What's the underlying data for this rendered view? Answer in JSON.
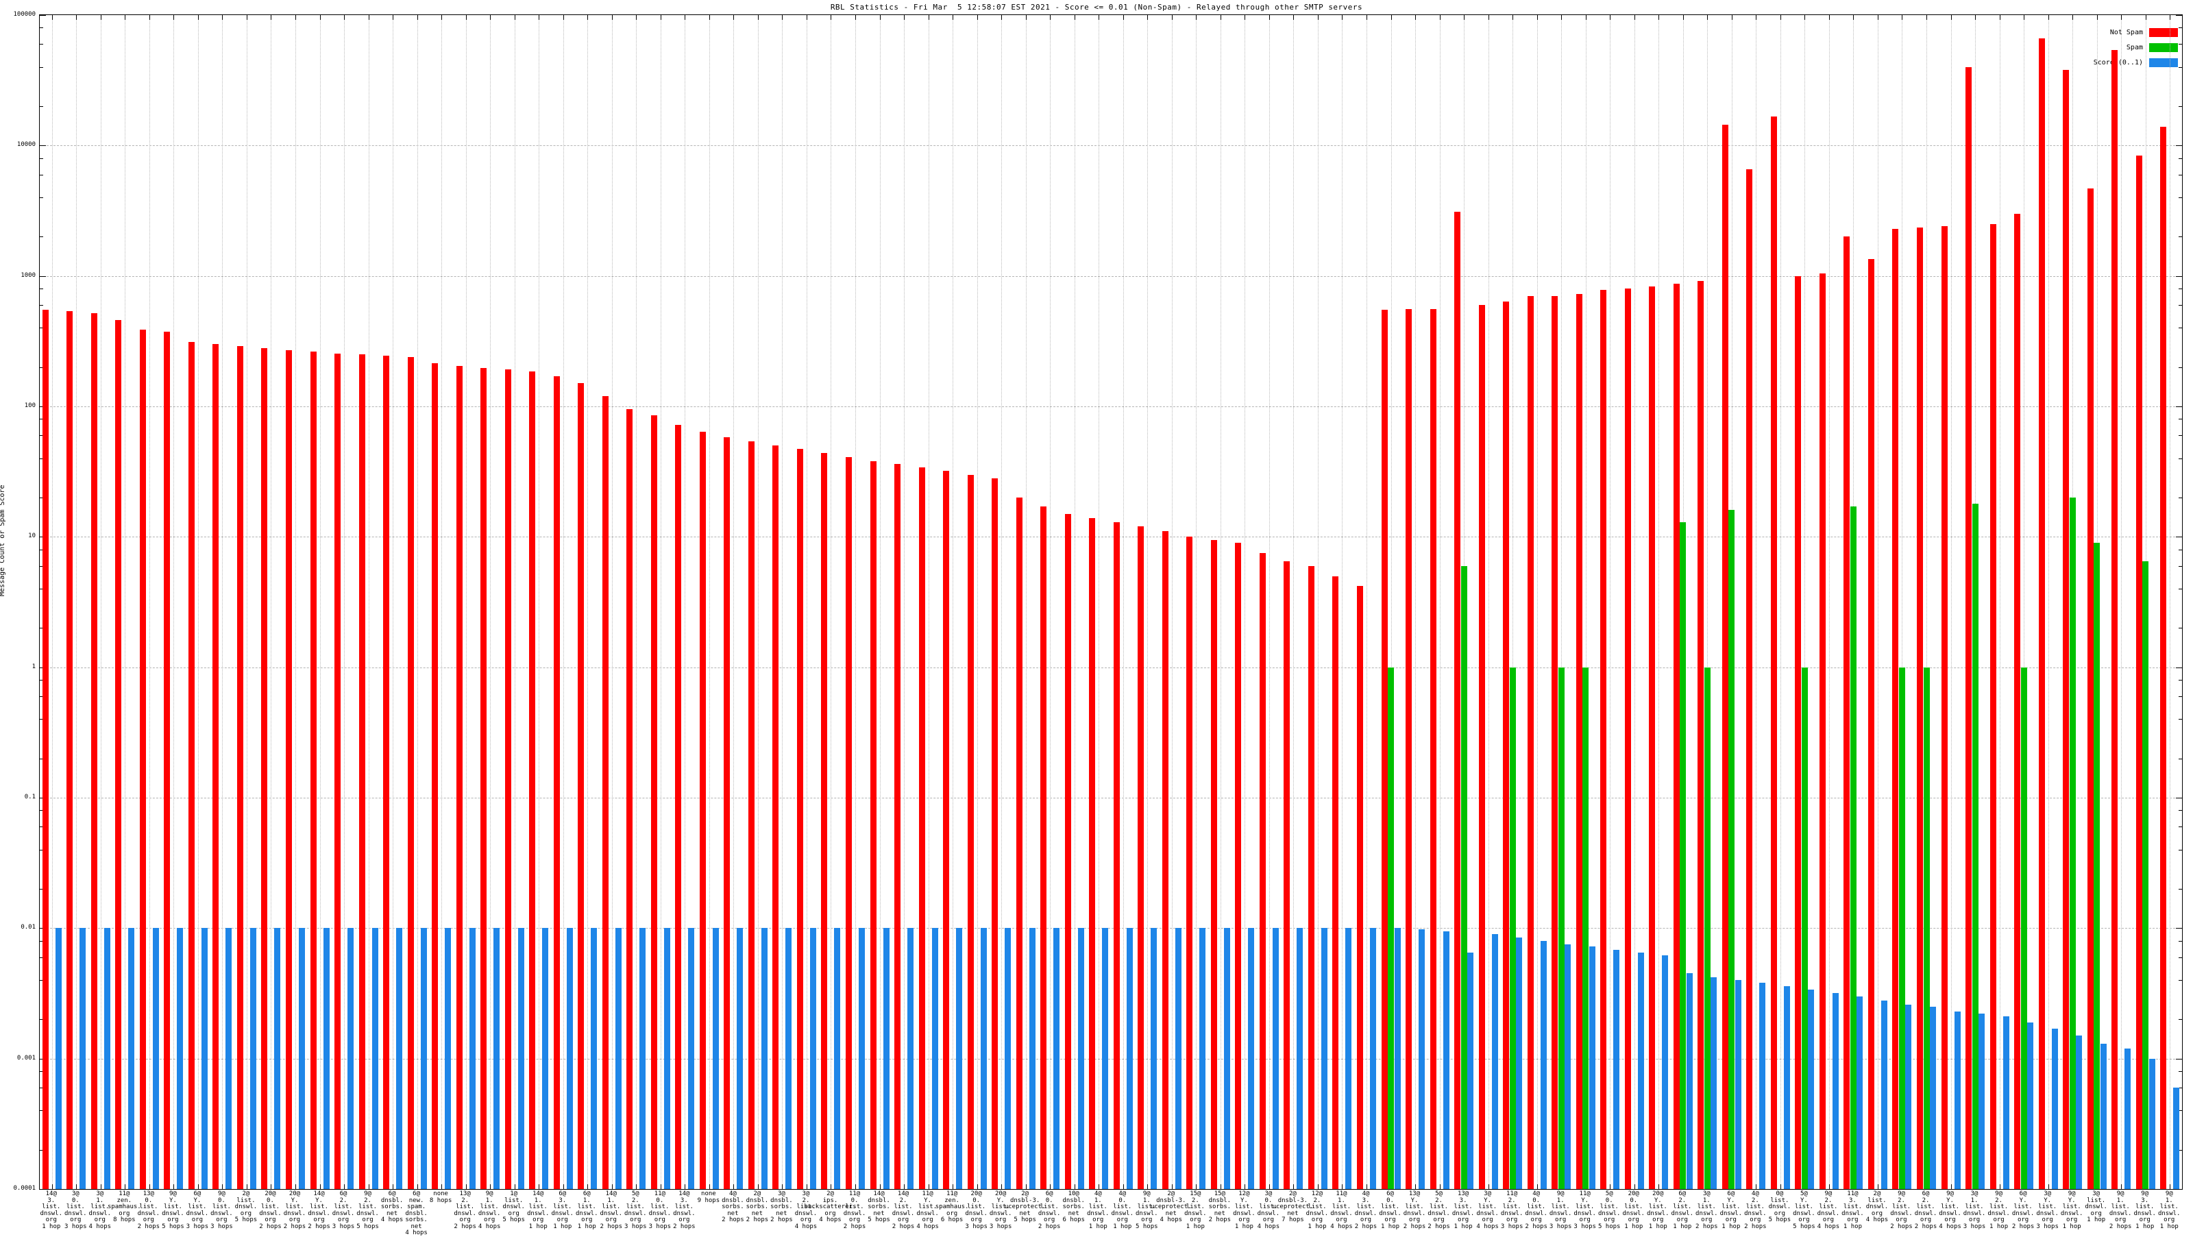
{
  "title": "RBL Statistics - Fri Mar  5 12:58:07 EST 2021 - Score <= 0.01 (Non-Spam) - Relayed through other SMTP servers",
  "y_axis": {
    "label": "Message Count or Spam Score",
    "ticks": [
      "100000",
      "10000",
      "1000",
      "100",
      "10",
      "1",
      "0.1",
      "0.01",
      "0.001",
      "0.0001"
    ]
  },
  "legend": [
    {
      "label": "Not Spam",
      "color": "#ff0000"
    },
    {
      "label": "Spam",
      "color": "#00c000"
    },
    {
      "label": "Score (0..1)",
      "color": "#1e86e8"
    }
  ],
  "chart_data": {
    "type": "bar",
    "y_scale": "log",
    "ylim": [
      0.0001,
      100000
    ],
    "grid": {
      "horizontal": "dashed-per-decade",
      "vertical": "dotted-per-group"
    },
    "legend_position": "top-right",
    "series_names": [
      "Not Spam",
      "Spam",
      "Score (0..1)"
    ],
    "groups": [
      {
        "label": [
          "14@",
          "3.",
          "list.",
          "dnswl.",
          "org",
          "1 hop"
        ],
        "not_spam": 550,
        "spam": 0,
        "score": 0.01
      },
      {
        "label": [
          "3@",
          "0.",
          "list.",
          "dnswl.",
          "org",
          "3 hops"
        ],
        "not_spam": 535,
        "spam": 0,
        "score": 0.01
      },
      {
        "label": [
          "3@",
          "1.",
          "list.",
          "dnswl.",
          "org",
          "4 hops"
        ],
        "not_spam": 520,
        "spam": 0,
        "score": 0.01
      },
      {
        "label": [
          "11@",
          "zen.",
          "spamhaus.",
          "org",
          "8 hops"
        ],
        "not_spam": 460,
        "spam": 0,
        "score": 0.01
      },
      {
        "label": [
          "13@",
          "0.",
          "list.",
          "dnswl.",
          "org",
          "2 hops"
        ],
        "not_spam": 390,
        "spam": 0,
        "score": 0.01
      },
      {
        "label": [
          "9@",
          "Y.",
          "list.",
          "dnswl.",
          "org",
          "5 hops"
        ],
        "not_spam": 375,
        "spam": 0,
        "score": 0.01
      },
      {
        "label": [
          "6@",
          "Y.",
          "list.",
          "dnswl.",
          "org",
          "3 hops"
        ],
        "not_spam": 310,
        "spam": 0,
        "score": 0.01
      },
      {
        "label": [
          "9@",
          "0.",
          "list.",
          "dnswl.",
          "org",
          "3 hops"
        ],
        "not_spam": 300,
        "spam": 0,
        "score": 0.01
      },
      {
        "label": [
          "2@",
          "list.",
          "dnswl.",
          "org",
          "5 hops"
        ],
        "not_spam": 290,
        "spam": 0,
        "score": 0.01
      },
      {
        "label": [
          "20@",
          "0.",
          "list.",
          "dnswl.",
          "org",
          "2 hops"
        ],
        "not_spam": 280,
        "spam": 0,
        "score": 0.01
      },
      {
        "label": [
          "20@",
          "Y.",
          "list.",
          "dnswl.",
          "org",
          "2 hops"
        ],
        "not_spam": 270,
        "spam": 0,
        "score": 0.01
      },
      {
        "label": [
          "14@",
          "Y.",
          "list.",
          "dnswl.",
          "org",
          "2 hops"
        ],
        "not_spam": 262,
        "spam": 0,
        "score": 0.01
      },
      {
        "label": [
          "6@",
          "2.",
          "list.",
          "dnswl.",
          "org",
          "3 hops"
        ],
        "not_spam": 255,
        "spam": 0,
        "score": 0.01
      },
      {
        "label": [
          "9@",
          "2.",
          "list.",
          "dnswl.",
          "org",
          "5 hops"
        ],
        "not_spam": 250,
        "spam": 0,
        "score": 0.01
      },
      {
        "label": [
          "6@",
          "dnsbl.",
          "sorbs.",
          "net",
          "4 hops"
        ],
        "not_spam": 245,
        "spam": 0,
        "score": 0.01
      },
      {
        "label": [
          "6@",
          "new.",
          "spam.",
          "dnsbl.",
          "sorbs.",
          "net",
          "4 hops"
        ],
        "not_spam": 240,
        "spam": 0,
        "score": 0.01
      },
      {
        "label": [
          "none",
          "8 hops"
        ],
        "not_spam": 215,
        "spam": 0,
        "score": 0.01
      },
      {
        "label": [
          "13@",
          "2.",
          "list.",
          "dnswl.",
          "org",
          "2 hops"
        ],
        "not_spam": 205,
        "spam": 0,
        "score": 0.01
      },
      {
        "label": [
          "9@",
          "1.",
          "list.",
          "dnswl.",
          "org",
          "4 hops"
        ],
        "not_spam": 198,
        "spam": 0,
        "score": 0.01
      },
      {
        "label": [
          "1@",
          "list.",
          "dnswl.",
          "org",
          "5 hops"
        ],
        "not_spam": 192,
        "spam": 0,
        "score": 0.01
      },
      {
        "label": [
          "14@",
          "1.",
          "list.",
          "dnswl.",
          "org",
          "1 hop"
        ],
        "not_spam": 186,
        "spam": 0,
        "score": 0.01
      },
      {
        "label": [
          "6@",
          "3.",
          "list.",
          "dnswl.",
          "org",
          "1 hop"
        ],
        "not_spam": 170,
        "spam": 0,
        "score": 0.01
      },
      {
        "label": [
          "6@",
          "1.",
          "list.",
          "dnswl.",
          "org",
          "1 hop"
        ],
        "not_spam": 150,
        "spam": 0,
        "score": 0.01
      },
      {
        "label": [
          "14@",
          "1.",
          "list.",
          "dnswl.",
          "org",
          "2 hops"
        ],
        "not_spam": 120,
        "spam": 0,
        "score": 0.01
      },
      {
        "label": [
          "5@",
          "2.",
          "list.",
          "dnswl.",
          "org",
          "3 hops"
        ],
        "not_spam": 95,
        "spam": 0,
        "score": 0.01
      },
      {
        "label": [
          "11@",
          "0.",
          "list.",
          "dnswl.",
          "org",
          "3 hops"
        ],
        "not_spam": 85,
        "spam": 0,
        "score": 0.01
      },
      {
        "label": [
          "14@",
          "3.",
          "list.",
          "dnswl.",
          "org",
          "2 hops"
        ],
        "not_spam": 72,
        "spam": 0,
        "score": 0.01
      },
      {
        "label": [
          "none",
          "9 hops"
        ],
        "not_spam": 64,
        "spam": 0,
        "score": 0.01
      },
      {
        "label": [
          "4@",
          "dnsbl.",
          "sorbs.",
          "net",
          "2 hops"
        ],
        "not_spam": 58,
        "spam": 0,
        "score": 0.01
      },
      {
        "label": [
          "2@",
          "dnsbl.",
          "sorbs.",
          "net",
          "2 hops"
        ],
        "not_spam": 54,
        "spam": 0,
        "score": 0.01
      },
      {
        "label": [
          "3@",
          "dnsbl.",
          "sorbs.",
          "net",
          "2 hops"
        ],
        "not_spam": 50,
        "spam": 0,
        "score": 0.01
      },
      {
        "label": [
          "3@",
          "2.",
          "list.",
          "dnswl.",
          "org",
          "4 hops"
        ],
        "not_spam": 47,
        "spam": 0,
        "score": 0.01
      },
      {
        "label": [
          "2@",
          "ips.",
          "backscatterer.",
          "org",
          "4 hops"
        ],
        "not_spam": 44,
        "spam": 0,
        "score": 0.01
      },
      {
        "label": [
          "11@",
          "0.",
          "list.",
          "dnswl.",
          "org",
          "2 hops"
        ],
        "not_spam": 41,
        "spam": 0,
        "score": 0.01
      },
      {
        "label": [
          "14@",
          "dnsbl.",
          "sorbs.",
          "net",
          "5 hops"
        ],
        "not_spam": 38,
        "spam": 0,
        "score": 0.01
      },
      {
        "label": [
          "14@",
          "2.",
          "list.",
          "dnswl.",
          "org",
          "2 hops"
        ],
        "not_spam": 36,
        "spam": 0,
        "score": 0.01
      },
      {
        "label": [
          "11@",
          "Y.",
          "list.",
          "dnswl.",
          "org",
          "4 hops"
        ],
        "not_spam": 34,
        "spam": 0,
        "score": 0.01
      },
      {
        "label": [
          "11@",
          "zen.",
          "spamhaus.",
          "org",
          "6 hops"
        ],
        "not_spam": 32,
        "spam": 0,
        "score": 0.01
      },
      {
        "label": [
          "20@",
          "0.",
          "list.",
          "dnswl.",
          "org",
          "3 hops"
        ],
        "not_spam": 30,
        "spam": 0,
        "score": 0.01
      },
      {
        "label": [
          "20@",
          "Y.",
          "list.",
          "dnswl.",
          "org",
          "3 hops"
        ],
        "not_spam": 28,
        "spam": 0,
        "score": 0.01
      },
      {
        "label": [
          "2@",
          "dnsbl-3.",
          "uceprotect.",
          "net",
          "5 hops"
        ],
        "not_spam": 20,
        "spam": 0,
        "score": 0.01
      },
      {
        "label": [
          "6@",
          "0.",
          "list.",
          "dnswl.",
          "org",
          "2 hops"
        ],
        "not_spam": 17,
        "spam": 0,
        "score": 0.01
      },
      {
        "label": [
          "10@",
          "dnsbl.",
          "sorbs.",
          "net",
          "6 hops"
        ],
        "not_spam": 15,
        "spam": 0,
        "score": 0.01
      },
      {
        "label": [
          "4@",
          "1.",
          "list.",
          "dnswl.",
          "org",
          "1 hop"
        ],
        "not_spam": 14,
        "spam": 0,
        "score": 0.01
      },
      {
        "label": [
          "4@",
          "0.",
          "list.",
          "dnswl.",
          "org",
          "1 hop"
        ],
        "not_spam": 13,
        "spam": 0,
        "score": 0.01
      },
      {
        "label": [
          "9@",
          "1.",
          "list.",
          "dnswl.",
          "org",
          "5 hops"
        ],
        "not_spam": 12,
        "spam": 0,
        "score": 0.01
      },
      {
        "label": [
          "2@",
          "dnsbl-3.",
          "uceprotect.",
          "net",
          "4 hops"
        ],
        "not_spam": 11,
        "spam": 0,
        "score": 0.01
      },
      {
        "label": [
          "15@",
          "2.",
          "list.",
          "dnswl.",
          "org",
          "1 hop"
        ],
        "not_spam": 10,
        "spam": 0,
        "score": 0.01
      },
      {
        "label": [
          "15@",
          "dnsbl.",
          "sorbs.",
          "net",
          "2 hops"
        ],
        "not_spam": 9.5,
        "spam": 0,
        "score": 0.01
      },
      {
        "label": [
          "12@",
          "Y.",
          "list.",
          "dnswl.",
          "org",
          "1 hop"
        ],
        "not_spam": 9,
        "spam": 0,
        "score": 0.01
      },
      {
        "label": [
          "3@",
          "0.",
          "list.",
          "dnswl.",
          "org",
          "4 hops"
        ],
        "not_spam": 7.5,
        "spam": 0,
        "score": 0.01
      },
      {
        "label": [
          "2@",
          "dnsbl-3.",
          "uceprotect.",
          "net",
          "7 hops"
        ],
        "not_spam": 6.5,
        "spam": 0,
        "score": 0.01
      },
      {
        "label": [
          "12@",
          "2.",
          "list.",
          "dnswl.",
          "org",
          "1 hop"
        ],
        "not_spam": 6,
        "spam": 0,
        "score": 0.01
      },
      {
        "label": [
          "11@",
          "1.",
          "list.",
          "dnswl.",
          "org",
          "4 hops"
        ],
        "not_spam": 5,
        "spam": 0,
        "score": 0.01
      },
      {
        "label": [
          "4@",
          "3.",
          "list.",
          "dnswl.",
          "org",
          "2 hops"
        ],
        "not_spam": 4.2,
        "spam": 0,
        "score": 0.01
      },
      {
        "label": [
          "6@",
          "0.",
          "list.",
          "dnswl.",
          "org",
          "1 hop"
        ],
        "not_spam": 550,
        "spam": 1,
        "score": 0.01
      },
      {
        "label": [
          "13@",
          "Y.",
          "list.",
          "dnswl.",
          "org",
          "2 hops"
        ],
        "not_spam": 560,
        "spam": 0,
        "score": 0.0098
      },
      {
        "label": [
          "5@",
          "2.",
          "list.",
          "dnswl.",
          "org",
          "2 hops"
        ],
        "not_spam": 560,
        "spam": 0,
        "score": 0.0095
      },
      {
        "label": [
          "13@",
          "3.",
          "list.",
          "dnswl.",
          "org",
          "1 hop"
        ],
        "not_spam": 3100,
        "spam": 6,
        "score": 0.0065
      },
      {
        "label": [
          "3@",
          "Y.",
          "list.",
          "dnswl.",
          "org",
          "4 hops"
        ],
        "not_spam": 600,
        "spam": 0,
        "score": 0.009
      },
      {
        "label": [
          "11@",
          "2.",
          "list.",
          "dnswl.",
          "org",
          "3 hops"
        ],
        "not_spam": 640,
        "spam": 1,
        "score": 0.0085
      },
      {
        "label": [
          "4@",
          "0.",
          "list.",
          "dnswl.",
          "org",
          "2 hops"
        ],
        "not_spam": 700,
        "spam": 0,
        "score": 0.008
      },
      {
        "label": [
          "9@",
          "1.",
          "list.",
          "dnswl.",
          "org",
          "3 hops"
        ],
        "not_spam": 700,
        "spam": 1,
        "score": 0.0075
      },
      {
        "label": [
          "11@",
          "Y.",
          "list.",
          "dnswl.",
          "org",
          "3 hops"
        ],
        "not_spam": 730,
        "spam": 1,
        "score": 0.0072
      },
      {
        "label": [
          "5@",
          "0.",
          "list.",
          "dnswl.",
          "org",
          "5 hops"
        ],
        "not_spam": 780,
        "spam": 0,
        "score": 0.0068
      },
      {
        "label": [
          "20@",
          "0.",
          "list.",
          "dnswl.",
          "org",
          "1 hop"
        ],
        "not_spam": 800,
        "spam": 0,
        "score": 0.0065
      },
      {
        "label": [
          "20@",
          "Y.",
          "list.",
          "dnswl.",
          "org",
          "1 hop"
        ],
        "not_spam": 830,
        "spam": 0,
        "score": 0.0062
      },
      {
        "label": [
          "6@",
          "2.",
          "list.",
          "dnswl.",
          "org",
          "1 hop"
        ],
        "not_spam": 870,
        "spam": 13,
        "score": 0.0045
      },
      {
        "label": [
          "3@",
          "1.",
          "list.",
          "dnswl.",
          "org",
          "2 hops"
        ],
        "not_spam": 920,
        "spam": 1,
        "score": 0.0042
      },
      {
        "label": [
          "6@",
          "Y.",
          "list.",
          "dnswl.",
          "org",
          "1 hop"
        ],
        "not_spam": 14500,
        "spam": 16,
        "score": 0.004
      },
      {
        "label": [
          "4@",
          "2.",
          "list.",
          "dnswl.",
          "org",
          "2 hops"
        ],
        "not_spam": 6600,
        "spam": 0,
        "score": 0.0038
      },
      {
        "label": [
          "0@",
          "list.",
          "dnswl.",
          "org",
          "5 hops"
        ],
        "not_spam": 16600,
        "spam": 0,
        "score": 0.0036
      },
      {
        "label": [
          "5@",
          "Y.",
          "list.",
          "dnswl.",
          "org",
          "5 hops"
        ],
        "not_spam": 1000,
        "spam": 1,
        "score": 0.0034
      },
      {
        "label": [
          "9@",
          "2.",
          "list.",
          "dnswl.",
          "org",
          "4 hops"
        ],
        "not_spam": 1050,
        "spam": 0,
        "score": 0.0032
      },
      {
        "label": [
          "11@",
          "3.",
          "list.",
          "dnswl.",
          "org",
          "1 hop"
        ],
        "not_spam": 2000,
        "spam": 17,
        "score": 0.003
      },
      {
        "label": [
          "2@",
          "list.",
          "dnswl.",
          "org",
          "4 hops"
        ],
        "not_spam": 1350,
        "spam": 0,
        "score": 0.0028
      },
      {
        "label": [
          "9@",
          "2.",
          "list.",
          "dnswl.",
          "org",
          "2 hops"
        ],
        "not_spam": 2300,
        "spam": 1,
        "score": 0.0026
      },
      {
        "label": [
          "6@",
          "2.",
          "list.",
          "dnswl.",
          "org",
          "2 hops"
        ],
        "not_spam": 2350,
        "spam": 1,
        "score": 0.0025
      },
      {
        "label": [
          "9@",
          "Y.",
          "list.",
          "dnswl.",
          "org",
          "4 hops"
        ],
        "not_spam": 2400,
        "spam": 0,
        "score": 0.0023
      },
      {
        "label": [
          "3@",
          "1.",
          "list.",
          "dnswl.",
          "org",
          "3 hops"
        ],
        "not_spam": 40000,
        "spam": 18,
        "score": 0.0022
      },
      {
        "label": [
          "9@",
          "2.",
          "list.",
          "dnswl.",
          "org",
          "1 hop"
        ],
        "not_spam": 2500,
        "spam": 0,
        "score": 0.0021
      },
      {
        "label": [
          "6@",
          "Y.",
          "list.",
          "dnswl.",
          "org",
          "2 hops"
        ],
        "not_spam": 3000,
        "spam": 1,
        "score": 0.0019
      },
      {
        "label": [
          "3@",
          "Y.",
          "list.",
          "dnswl.",
          "org",
          "3 hops"
        ],
        "not_spam": 66000,
        "spam": 0,
        "score": 0.0017
      },
      {
        "label": [
          "9@",
          "Y.",
          "list.",
          "dnswl.",
          "org",
          "1 hop"
        ],
        "not_spam": 38000,
        "spam": 20,
        "score": 0.0015
      },
      {
        "label": [
          "3@",
          "list.",
          "dnswl.",
          "org",
          "1 hop"
        ],
        "not_spam": 4700,
        "spam": 9,
        "score": 0.0013
      },
      {
        "label": [
          "9@",
          "1.",
          "list.",
          "dnswl.",
          "org",
          "2 hops"
        ],
        "not_spam": 54000,
        "spam": 0,
        "score": 0.0012
      },
      {
        "label": [
          "9@",
          "3.",
          "list.",
          "dnswl.",
          "org",
          "1 hop"
        ],
        "not_spam": 8400,
        "spam": 6.5,
        "score": 0.001
      },
      {
        "label": [
          "9@",
          "1.",
          "list.",
          "dnswl.",
          "org",
          "1 hop"
        ],
        "not_spam": 14000,
        "spam": 0,
        "score": 0.0006
      }
    ]
  }
}
